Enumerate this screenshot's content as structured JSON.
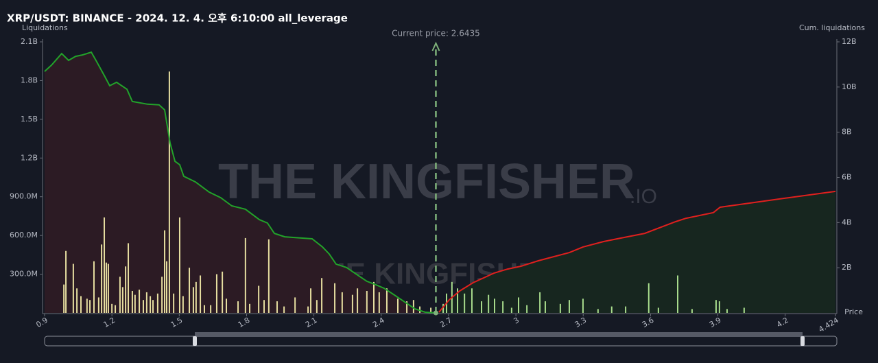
{
  "chart_data": {
    "type": "liquidation-map",
    "title": "XRP/USDT: BINANCE - 2024. 12. 4. 오후 6:10:00 all_leverage",
    "y_label": "Liquidations",
    "y2_label": "Cum. liquidations",
    "x_label": "Price",
    "watermark": "THE KINGFISHER",
    "watermark_suffix": ".IO",
    "current_price": {
      "label": "Current price: 2.6435",
      "x": 2.6435,
      "color": "#7fb27a"
    },
    "xlim": [
      0.9,
      4.424
    ],
    "xticks": [
      0.9,
      1.2,
      1.5,
      1.8,
      2.1,
      2.4,
      2.7,
      3,
      3.3,
      3.6,
      3.9,
      4.2,
      4.424
    ],
    "ylim": [
      0,
      2100
    ],
    "yticks": [
      {
        "value": 300,
        "label": "300.0M"
      },
      {
        "value": 600,
        "label": "600.0M"
      },
      {
        "value": 900,
        "label": "900.0M"
      },
      {
        "value": 1200,
        "label": "1.2B"
      },
      {
        "value": 1500,
        "label": "1.5B"
      },
      {
        "value": 1800,
        "label": "1.8B"
      },
      {
        "value": 2100,
        "label": "2.1B"
      }
    ],
    "y2lim": [
      0,
      12
    ],
    "y2ticks": [
      {
        "value": 2,
        "label": "2B"
      },
      {
        "value": 4,
        "label": "4B"
      },
      {
        "value": 6,
        "label": "6B"
      },
      {
        "value": 8,
        "label": "8B"
      },
      {
        "value": 10,
        "label": "10B"
      },
      {
        "value": 12,
        "label": "12B"
      }
    ],
    "series": [
      {
        "type": "bar",
        "color": "#e6dea0",
        "x": [
          0.986,
          0.995,
          1.028,
          1.044,
          1.062,
          1.089,
          1.102,
          1.12,
          1.141,
          1.154,
          1.166,
          1.175,
          1.184,
          1.2,
          1.215,
          1.236,
          1.248,
          1.261,
          1.273,
          1.291,
          1.303,
          1.322,
          1.34,
          1.355,
          1.371,
          1.383,
          1.404,
          1.423,
          1.435,
          1.444,
          1.456,
          1.475,
          1.502,
          1.517,
          1.545,
          1.563,
          1.575,
          1.594,
          1.612,
          1.64,
          1.667,
          1.692,
          1.71,
          1.762,
          1.795,
          1.814,
          1.854,
          1.878,
          1.899,
          1.936,
          1.967,
          2.016,
          2.074,
          2.086,
          2.113,
          2.135,
          2.193,
          2.226,
          2.272,
          2.294,
          2.336,
          2.367,
          2.391,
          2.425,
          2.474,
          2.514,
          2.544,
          2.572,
          2.621
        ],
        "values": [
          220,
          480,
          380,
          190,
          130,
          110,
          100,
          400,
          120,
          530,
          740,
          390,
          380,
          70,
          60,
          280,
          200,
          360,
          540,
          170,
          140,
          180,
          100,
          160,
          130,
          100,
          150,
          280,
          640,
          400,
          1870,
          150,
          740,
          130,
          350,
          200,
          240,
          290,
          60,
          60,
          300,
          320,
          110,
          90,
          580,
          70,
          210,
          100,
          570,
          90,
          50,
          120,
          50,
          190,
          100,
          270,
          230,
          160,
          140,
          190,
          170,
          240,
          160,
          190,
          110,
          90,
          100,
          50,
          40
        ]
      },
      {
        "type": "bar",
        "color": "#a8dc8c",
        "x": [
          2.676,
          2.691,
          2.715,
          2.74,
          2.771,
          2.804,
          2.847,
          2.878,
          2.905,
          2.942,
          2.981,
          3.012,
          3.049,
          3.107,
          3.131,
          3.198,
          3.238,
          3.299,
          3.366,
          3.427,
          3.489,
          3.592,
          3.635,
          3.721,
          3.785,
          3.892,
          3.907,
          3.941,
          4.017
        ],
        "values": [
          70,
          150,
          240,
          190,
          150,
          190,
          90,
          140,
          110,
          90,
          40,
          120,
          60,
          160,
          90,
          70,
          100,
          110,
          30,
          50,
          50,
          230,
          40,
          290,
          30,
          100,
          90,
          30,
          40
        ]
      },
      {
        "type": "line",
        "axis": "y2",
        "color": "#22a32a",
        "fill": "#2c1b24",
        "x": [
          0.9,
          0.931,
          0.976,
          1.007,
          1.038,
          1.068,
          1.108,
          1.129,
          1.166,
          1.19,
          1.221,
          1.267,
          1.291,
          1.358,
          1.41,
          1.435,
          1.459,
          1.481,
          1.502,
          1.52,
          1.572,
          1.633,
          1.685,
          1.734,
          1.795,
          1.857,
          1.893,
          1.924,
          1.97,
          2.092,
          2.138,
          2.168,
          2.199,
          2.245,
          2.291,
          2.336,
          2.376,
          2.413,
          2.459,
          2.504,
          2.55,
          2.596,
          2.6435
        ],
        "values": [
          10.69,
          10.97,
          11.48,
          11.18,
          11.36,
          11.42,
          11.54,
          11.18,
          10.51,
          10.06,
          10.21,
          9.9,
          9.36,
          9.24,
          9.21,
          8.99,
          7.53,
          6.71,
          6.56,
          6.05,
          5.8,
          5.35,
          5.1,
          4.74,
          4.59,
          4.13,
          3.98,
          3.52,
          3.37,
          3.28,
          2.92,
          2.61,
          2.16,
          2.01,
          1.7,
          1.4,
          1.25,
          1.09,
          0.79,
          0.49,
          0.18,
          0.03,
          0
        ]
      },
      {
        "type": "line",
        "axis": "y2",
        "color": "#e0201e",
        "fill": "#17261f",
        "x": [
          2.657,
          2.703,
          2.749,
          2.81,
          2.856,
          2.902,
          2.963,
          3.024,
          3.1,
          3.146,
          3.238,
          3.299,
          3.391,
          3.467,
          3.574,
          3.712,
          3.758,
          3.88,
          3.91,
          4.063,
          4.216,
          4.424
        ],
        "values": [
          0.03,
          0.58,
          0.97,
          1.34,
          1.55,
          1.76,
          1.94,
          2.07,
          2.31,
          2.43,
          2.67,
          2.92,
          3.16,
          3.31,
          3.52,
          4.04,
          4.19,
          4.44,
          4.68,
          4.89,
          5.1,
          5.38
        ]
      }
    ]
  }
}
